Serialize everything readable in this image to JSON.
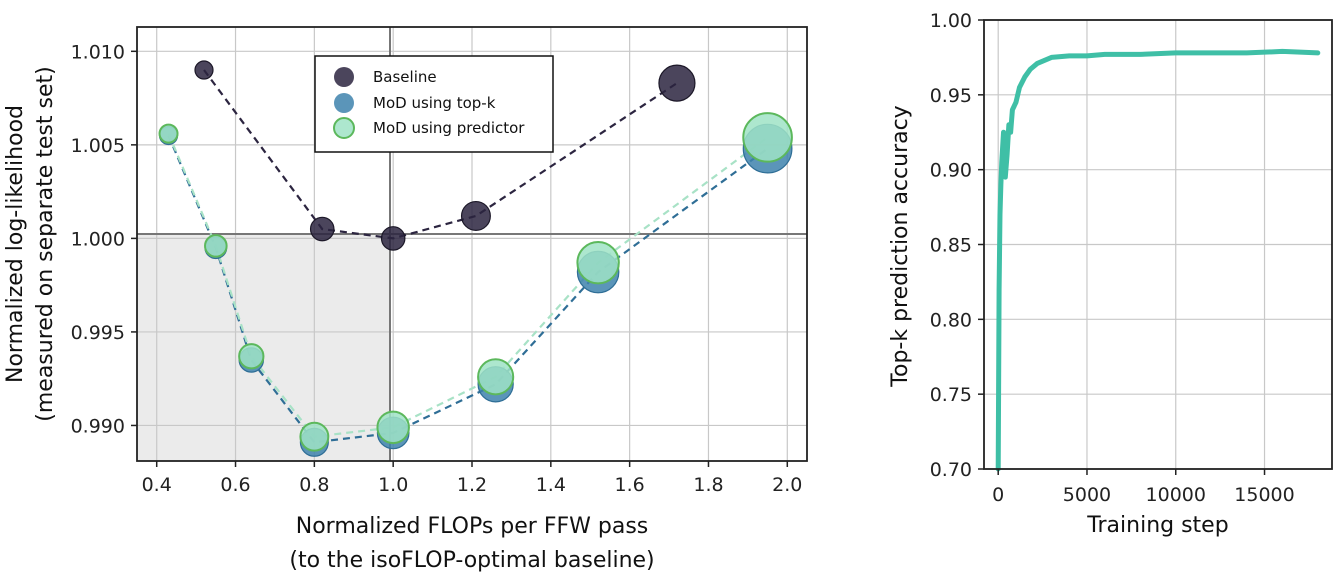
{
  "chart_data": [
    {
      "type": "line",
      "xlabel": "Normalized FLOPs per FFW pass",
      "xlabel2": "(to the isoFLOP-optimal baseline)",
      "ylabel": "Normalized log-likelihood",
      "ylabel2": "(measured on separate test set)",
      "xlim": [
        0.35,
        2.05
      ],
      "ylim": [
        0.9881,
        1.0113
      ],
      "x_ticks": [
        "0.4",
        "0.6",
        "0.8",
        "1.0",
        "1.2",
        "1.4",
        "1.6",
        "1.8",
        "2.0"
      ],
      "x_tick_values": [
        0.4,
        0.6,
        0.8,
        1.0,
        1.2,
        1.4,
        1.6,
        1.8,
        2.0
      ],
      "y_ticks": [
        "0.990",
        "0.995",
        "1.000",
        "1.005",
        "1.010"
      ],
      "y_tick_values": [
        0.99,
        0.995,
        1.0,
        1.005,
        1.01
      ],
      "shaded_region": {
        "x": [
          0.35,
          1.0
        ],
        "y": [
          0.9881,
          1.0
        ]
      },
      "legend": {
        "position": "top-center",
        "entries": [
          "Baseline",
          "MoD using top-k",
          "MoD using predictor"
        ]
      },
      "series": [
        {
          "name": "Baseline",
          "color": "#2c2540",
          "x": [
            0.52,
            0.82,
            1.0,
            1.21,
            1.72
          ],
          "y": [
            1.009,
            1.0005,
            1.0,
            1.0012,
            1.0083
          ],
          "size": [
            1,
            1.3,
            1.3,
            1.6,
            2.0
          ]
        },
        {
          "name": "MoD using top-k",
          "color": "#3e83ad",
          "x": [
            0.43,
            0.55,
            0.64,
            0.8,
            1.0,
            1.26,
            1.52,
            1.95
          ],
          "y": [
            1.0055,
            0.9995,
            0.9935,
            0.9891,
            0.9896,
            0.9922,
            0.9982,
            1.0048
          ],
          "size": [
            1,
            1.2,
            1.35,
            1.55,
            1.75,
            1.95,
            2.3,
            2.7
          ]
        },
        {
          "name": "MoD using predictor",
          "color": "#9fe3c5",
          "x": [
            0.43,
            0.55,
            0.64,
            0.8,
            1.0,
            1.26,
            1.52,
            1.95
          ],
          "y": [
            1.0056,
            0.9996,
            0.9937,
            0.9894,
            0.9899,
            0.9926,
            0.9987,
            1.0054
          ],
          "size": [
            1,
            1.2,
            1.35,
            1.55,
            1.75,
            1.95,
            2.3,
            2.7
          ]
        }
      ]
    },
    {
      "type": "line",
      "xlabel": "Training step",
      "ylabel": "Top-k prediction accuracy",
      "xlim": [
        -800,
        18800
      ],
      "ylim": [
        0.7,
        1.0
      ],
      "x_ticks": [
        "0",
        "5000",
        "10000",
        "15000"
      ],
      "x_tick_values": [
        0,
        5000,
        10000,
        15000
      ],
      "y_ticks": [
        "0.70",
        "0.75",
        "0.80",
        "0.85",
        "0.90",
        "0.95",
        "1.00"
      ],
      "y_tick_values": [
        0.7,
        0.75,
        0.8,
        0.85,
        0.9,
        0.95,
        1.0
      ],
      "series": [
        {
          "name": "accuracy",
          "color": "#3fbfa6",
          "x": [
            0,
            50,
            100,
            150,
            200,
            300,
            350,
            400,
            500,
            600,
            700,
            800,
            1000,
            1200,
            1500,
            1800,
            2200,
            2600,
            3000,
            4000,
            5000,
            6000,
            8000,
            10000,
            12000,
            14000,
            16000,
            18000
          ],
          "y": [
            0.7,
            0.82,
            0.87,
            0.89,
            0.905,
            0.925,
            0.9,
            0.895,
            0.91,
            0.93,
            0.925,
            0.94,
            0.945,
            0.955,
            0.962,
            0.967,
            0.971,
            0.973,
            0.975,
            0.976,
            0.976,
            0.977,
            0.977,
            0.978,
            0.978,
            0.978,
            0.979,
            0.978
          ]
        }
      ]
    }
  ]
}
